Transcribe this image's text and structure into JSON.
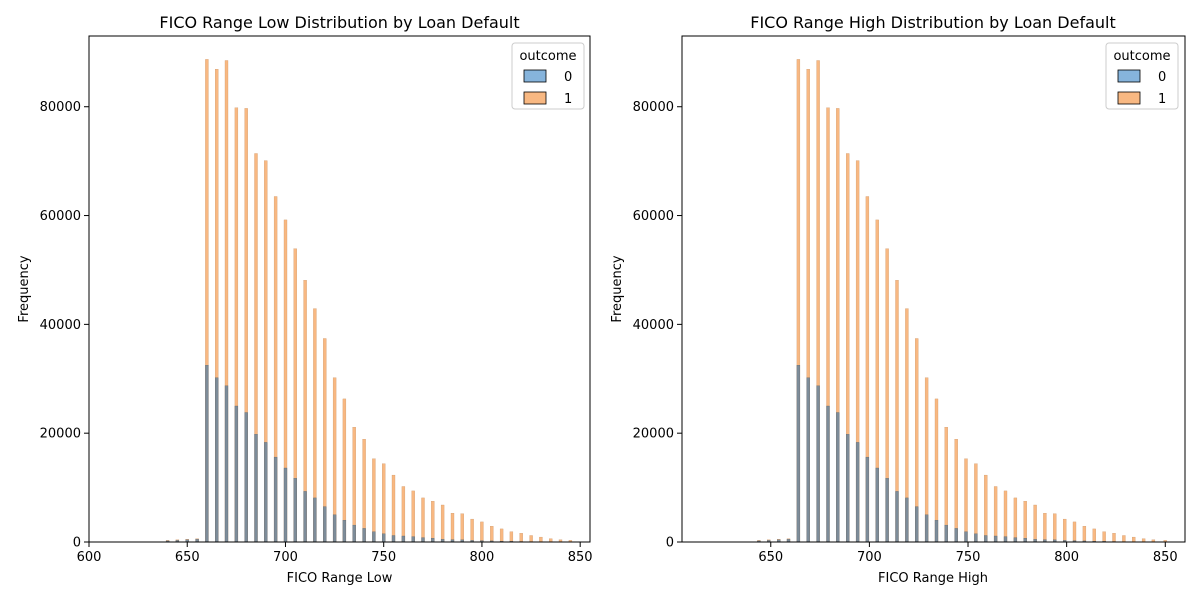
{
  "chart_data": [
    {
      "type": "bar",
      "title": "FICO Range Low Distribution by Loan Default",
      "xlabel": "FICO Range Low",
      "ylabel": "Frequency",
      "xlim": [
        600,
        855
      ],
      "ylim": [
        0,
        93000
      ],
      "x_ticks": [
        600,
        650,
        700,
        750,
        800,
        850
      ],
      "y_ticks": [
        0,
        20000,
        40000,
        60000,
        80000
      ],
      "legend": {
        "title": "outcome",
        "position": "top-right",
        "entries": [
          "0",
          "1"
        ]
      },
      "series_colors": {
        "0": "#86b4dc",
        "1": "#f8b882"
      },
      "stack_colors": {
        "overlap": "#7d8c99"
      },
      "x": [
        640,
        645,
        650,
        655,
        660,
        665,
        670,
        675,
        680,
        685,
        690,
        695,
        700,
        705,
        710,
        715,
        720,
        725,
        730,
        735,
        740,
        745,
        750,
        755,
        760,
        765,
        770,
        775,
        780,
        785,
        790,
        795,
        800,
        805,
        810,
        815,
        820,
        825,
        830,
        835,
        840,
        845
      ],
      "series": [
        {
          "name": "0",
          "values": [
            200,
            300,
            400,
            500,
            32500,
            30200,
            28700,
            25000,
            23800,
            19800,
            18300,
            15600,
            13600,
            11700,
            9300,
            8100,
            6500,
            5000,
            4000,
            3100,
            2500,
            1900,
            1500,
            1200,
            1100,
            1000,
            800,
            700,
            500,
            450,
            400,
            300,
            250,
            200,
            150,
            120,
            100,
            80,
            60,
            40,
            30,
            20
          ]
        },
        {
          "name": "1",
          "values": [
            300,
            400,
            500,
            600,
            88700,
            86900,
            88500,
            79800,
            79700,
            71400,
            70100,
            63500,
            59200,
            53900,
            48100,
            42900,
            37400,
            30200,
            26300,
            21100,
            18900,
            15300,
            14400,
            12300,
            10200,
            9400,
            8100,
            7500,
            6800,
            5300,
            5200,
            4200,
            3700,
            2900,
            2400,
            1900,
            1600,
            1200,
            900,
            600,
            400,
            300
          ]
        }
      ]
    },
    {
      "type": "bar",
      "title": "FICO Range High Distribution by Loan Default",
      "xlabel": "FICO Range High",
      "ylabel": "Frequency",
      "xlim": [
        605,
        860
      ],
      "ylim": [
        0,
        93000
      ],
      "x_ticks": [
        650,
        700,
        750,
        800,
        850
      ],
      "y_ticks": [
        0,
        20000,
        40000,
        60000,
        80000
      ],
      "legend": {
        "title": "outcome",
        "position": "top-right",
        "entries": [
          "0",
          "1"
        ]
      },
      "series_colors": {
        "0": "#86b4dc",
        "1": "#f8b882"
      },
      "stack_colors": {
        "overlap": "#7d8c99"
      },
      "x": [
        644,
        649,
        654,
        659,
        664,
        669,
        674,
        679,
        684,
        689,
        694,
        699,
        704,
        709,
        714,
        719,
        724,
        729,
        734,
        739,
        744,
        749,
        754,
        759,
        764,
        769,
        774,
        779,
        784,
        789,
        794,
        799,
        804,
        809,
        814,
        819,
        824,
        829,
        834,
        839,
        844,
        850
      ],
      "series": [
        {
          "name": "0",
          "values": [
            200,
            300,
            400,
            500,
            32500,
            30200,
            28700,
            25000,
            23800,
            19800,
            18300,
            15600,
            13600,
            11700,
            9300,
            8100,
            6500,
            5000,
            4000,
            3100,
            2500,
            1900,
            1500,
            1200,
            1100,
            1000,
            800,
            700,
            500,
            450,
            400,
            300,
            250,
            200,
            150,
            120,
            100,
            80,
            60,
            40,
            30,
            20
          ]
        },
        {
          "name": "1",
          "values": [
            300,
            400,
            500,
            600,
            88700,
            86900,
            88500,
            79800,
            79700,
            71400,
            70100,
            63500,
            59200,
            53900,
            48100,
            42900,
            37400,
            30200,
            26300,
            21100,
            18900,
            15300,
            14400,
            12300,
            10200,
            9400,
            8100,
            7500,
            6800,
            5300,
            5200,
            4200,
            3700,
            2900,
            2400,
            1900,
            1600,
            1200,
            900,
            600,
            400,
            300
          ]
        }
      ]
    }
  ]
}
